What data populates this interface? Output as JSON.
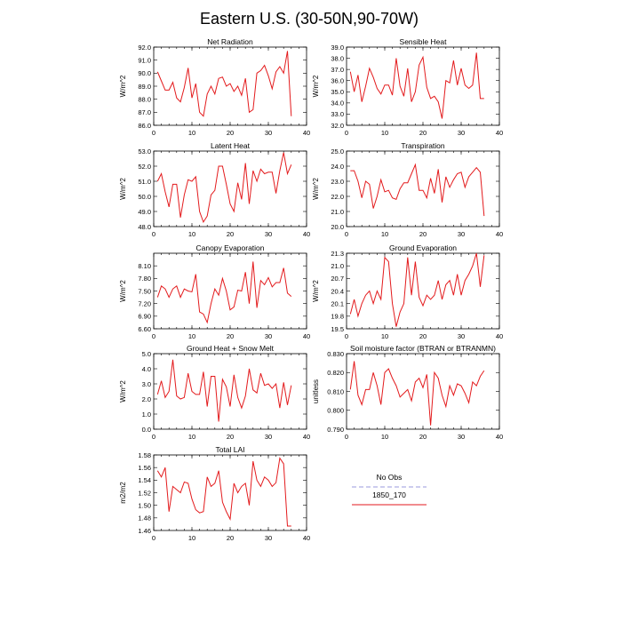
{
  "title": "Eastern U.S. (30-50N,90-70W)",
  "chart_data": [
    {
      "type": "line",
      "title": "Net Radiation",
      "ylabel": "W/m^2",
      "xlim": [
        0,
        40
      ],
      "ylim": [
        86.0,
        92.0
      ],
      "xticks": [
        "0",
        "10",
        "20",
        "30",
        "40"
      ],
      "yticks": [
        "86.0",
        "87.0",
        "88.0",
        "89.0",
        "90.0",
        "91.0",
        "92.0"
      ],
      "series": [
        {
          "name": "1850_170",
          "x": [
            1,
            2,
            3,
            4,
            5,
            6,
            7,
            8,
            9,
            10,
            11,
            12,
            13,
            14,
            15,
            16,
            17,
            18,
            19,
            20,
            21,
            22,
            23,
            24,
            25,
            26,
            27,
            28,
            29,
            30,
            31,
            32,
            33,
            34,
            35,
            36
          ],
          "values": [
            90.1,
            89.4,
            88.7,
            88.7,
            89.3,
            88.1,
            87.8,
            88.9,
            90.4,
            88.1,
            89.2,
            87.0,
            86.7,
            88.4,
            89.0,
            88.4,
            89.6,
            89.7,
            89.0,
            89.2,
            88.6,
            89.0,
            88.3,
            89.6,
            87.0,
            87.2,
            90.0,
            90.2,
            90.6,
            89.8,
            88.8,
            90.1,
            90.5,
            90.0,
            91.7,
            86.7
          ]
        }
      ]
    },
    {
      "type": "line",
      "title": "Sensible Heat",
      "ylabel": "W/m^2",
      "xlim": [
        0,
        40
      ],
      "ylim": [
        32.0,
        39.0
      ],
      "xticks": [
        "0",
        "10",
        "20",
        "30",
        "40"
      ],
      "yticks": [
        "32.0",
        "33.0",
        "34.0",
        "35.0",
        "36.0",
        "37.0",
        "38.0",
        "39.0"
      ],
      "series": [
        {
          "name": "1850_170",
          "x": [
            1,
            2,
            3,
            4,
            5,
            6,
            7,
            8,
            9,
            10,
            11,
            12,
            13,
            14,
            15,
            16,
            17,
            18,
            19,
            20,
            21,
            22,
            23,
            24,
            25,
            26,
            27,
            28,
            29,
            30,
            31,
            32,
            33,
            34,
            35,
            36
          ],
          "values": [
            36.8,
            35.0,
            36.5,
            34.1,
            35.5,
            37.1,
            36.3,
            35.3,
            34.8,
            35.6,
            35.6,
            34.7,
            38.0,
            35.5,
            34.6,
            37.1,
            34.1,
            35.0,
            37.4,
            38.1,
            35.4,
            34.4,
            34.6,
            34.1,
            32.6,
            36.0,
            35.8,
            37.8,
            35.6,
            37.1,
            35.6,
            35.3,
            35.6,
            38.5,
            34.4,
            34.4
          ]
        }
      ]
    },
    {
      "type": "line",
      "title": "Latent Heat",
      "ylabel": "W/m^2",
      "xlim": [
        0,
        40
      ],
      "ylim": [
        48.0,
        53.0
      ],
      "xticks": [
        "0",
        "10",
        "20",
        "30",
        "40"
      ],
      "yticks": [
        "48.0",
        "49.0",
        "50.0",
        "51.0",
        "52.0",
        "53.0"
      ],
      "series": [
        {
          "name": "1850_170",
          "x": [
            1,
            2,
            3,
            4,
            5,
            6,
            7,
            8,
            9,
            10,
            11,
            12,
            13,
            14,
            15,
            16,
            17,
            18,
            19,
            20,
            21,
            22,
            23,
            24,
            25,
            26,
            27,
            28,
            29,
            30,
            31,
            32,
            33,
            34,
            35,
            36
          ],
          "values": [
            51.0,
            51.5,
            50.3,
            49.3,
            50.8,
            50.8,
            48.6,
            50.1,
            51.1,
            51.0,
            51.3,
            49.0,
            48.3,
            48.7,
            50.1,
            50.4,
            52.0,
            52.0,
            50.8,
            49.5,
            49.0,
            50.9,
            49.8,
            52.2,
            49.5,
            51.7,
            51.0,
            51.8,
            51.5,
            51.6,
            51.6,
            50.2,
            51.7,
            52.9,
            51.5,
            52.1
          ]
        }
      ]
    },
    {
      "type": "line",
      "title": "Transpiration",
      "ylabel": "W/m^2",
      "xlim": [
        0,
        40
      ],
      "ylim": [
        20.0,
        25.0
      ],
      "xticks": [
        "0",
        "10",
        "20",
        "30",
        "40"
      ],
      "yticks": [
        "20.0",
        "21.0",
        "22.0",
        "23.0",
        "24.0",
        "25.0"
      ],
      "series": [
        {
          "name": "1850_170",
          "x": [
            1,
            2,
            3,
            4,
            5,
            6,
            7,
            8,
            9,
            10,
            11,
            12,
            13,
            14,
            15,
            16,
            17,
            18,
            19,
            20,
            21,
            22,
            23,
            24,
            25,
            26,
            27,
            28,
            29,
            30,
            31,
            32,
            33,
            34,
            35,
            36
          ],
          "values": [
            23.7,
            23.7,
            23.0,
            21.9,
            23.0,
            22.8,
            21.2,
            22.0,
            23.1,
            22.3,
            22.4,
            21.9,
            21.8,
            22.5,
            22.9,
            22.9,
            23.5,
            24.1,
            22.4,
            22.4,
            21.9,
            23.2,
            22.2,
            23.8,
            21.6,
            23.3,
            22.6,
            23.1,
            23.5,
            23.6,
            22.6,
            23.3,
            23.6,
            23.9,
            23.6,
            20.7
          ]
        }
      ]
    },
    {
      "type": "line",
      "title": "Canopy Evaporation",
      "ylabel": "W/m^2",
      "xlim": [
        0,
        40
      ],
      "ylim": [
        6.6,
        8.4
      ],
      "xticks": [
        "0",
        "10",
        "20",
        "30",
        "40"
      ],
      "yticks": [
        "6.60",
        "6.90",
        "7.20",
        "7.50",
        "7.80",
        "8.10"
      ],
      "series": [
        {
          "name": "1850_170",
          "x": [
            1,
            2,
            3,
            4,
            5,
            6,
            7,
            8,
            9,
            10,
            11,
            12,
            13,
            14,
            15,
            16,
            17,
            18,
            19,
            20,
            21,
            22,
            23,
            24,
            25,
            26,
            27,
            28,
            29,
            30,
            31,
            32,
            33,
            34,
            35,
            36
          ],
          "values": [
            7.35,
            7.62,
            7.55,
            7.35,
            7.55,
            7.62,
            7.35,
            7.55,
            7.5,
            7.48,
            7.9,
            7.0,
            6.95,
            6.75,
            7.2,
            7.55,
            7.4,
            7.8,
            7.5,
            7.05,
            7.12,
            7.52,
            7.5,
            7.95,
            7.2,
            8.2,
            7.1,
            7.75,
            7.65,
            7.82,
            7.6,
            7.7,
            7.7,
            8.05,
            7.45,
            7.37
          ]
        }
      ]
    },
    {
      "type": "line",
      "title": "Ground Evaporation",
      "ylabel": "W/m^2",
      "xlim": [
        0,
        40
      ],
      "ylim": [
        19.5,
        21.3
      ],
      "xticks": [
        "0",
        "10",
        "20",
        "30",
        "40"
      ],
      "yticks": [
        "19.5",
        "19.8",
        "20.1",
        "20.4",
        "20.7",
        "21.0",
        "21.3"
      ],
      "series": [
        {
          "name": "1850_170",
          "x": [
            1,
            2,
            3,
            4,
            5,
            6,
            7,
            8,
            9,
            10,
            11,
            12,
            13,
            14,
            15,
            16,
            17,
            18,
            19,
            20,
            21,
            22,
            23,
            24,
            25,
            26,
            27,
            28,
            29,
            30,
            31,
            32,
            33,
            34,
            35,
            36
          ],
          "values": [
            19.85,
            20.2,
            19.8,
            20.1,
            20.3,
            20.4,
            20.1,
            20.4,
            20.2,
            21.2,
            21.1,
            20.1,
            19.55,
            19.9,
            20.1,
            21.2,
            20.3,
            21.1,
            20.25,
            20.05,
            20.3,
            20.2,
            20.3,
            20.65,
            20.2,
            20.55,
            20.65,
            20.3,
            20.8,
            20.3,
            20.65,
            20.8,
            21.0,
            21.3,
            20.5,
            21.25
          ]
        }
      ]
    },
    {
      "type": "line",
      "title": "Ground Heat + Snow Melt",
      "ylabel": "W/m^2",
      "xlim": [
        0,
        40
      ],
      "ylim": [
        0.0,
        5.0
      ],
      "xticks": [
        "0",
        "10",
        "20",
        "30",
        "40"
      ],
      "yticks": [
        "0.0",
        "1.0",
        "2.0",
        "3.0",
        "4.0",
        "5.0"
      ],
      "series": [
        {
          "name": "1850_170",
          "x": [
            1,
            2,
            3,
            4,
            5,
            6,
            7,
            8,
            9,
            10,
            11,
            12,
            13,
            14,
            15,
            16,
            17,
            18,
            19,
            20,
            21,
            22,
            23,
            24,
            25,
            26,
            27,
            28,
            29,
            30,
            31,
            32,
            33,
            34,
            35,
            36
          ],
          "values": [
            2.3,
            3.2,
            2.1,
            2.5,
            4.6,
            2.2,
            2.0,
            2.1,
            3.7,
            2.5,
            2.3,
            2.3,
            3.8,
            1.5,
            3.5,
            3.5,
            0.5,
            3.3,
            2.8,
            1.5,
            3.6,
            2.1,
            1.4,
            2.2,
            4.0,
            2.6,
            2.4,
            3.7,
            2.9,
            3.0,
            2.7,
            3.0,
            1.4,
            3.1,
            1.6,
            2.9
          ]
        }
      ]
    },
    {
      "type": "line",
      "title": "Soil moisture factor (BTRAN or BTRANMN)",
      "ylabel": "unitless",
      "xlim": [
        0,
        40
      ],
      "ylim": [
        0.79,
        0.83
      ],
      "xticks": [
        "0",
        "10",
        "20",
        "30",
        "40"
      ],
      "yticks": [
        "0.790",
        "0.800",
        "0.810",
        "0.820",
        "0.830"
      ],
      "series": [
        {
          "name": "1850_170",
          "x": [
            1,
            2,
            3,
            4,
            5,
            6,
            7,
            8,
            9,
            10,
            11,
            12,
            13,
            14,
            15,
            16,
            17,
            18,
            19,
            20,
            21,
            22,
            23,
            24,
            25,
            26,
            27,
            28,
            29,
            30,
            31,
            32,
            33,
            34,
            35,
            36
          ],
          "values": [
            0.811,
            0.826,
            0.808,
            0.803,
            0.811,
            0.811,
            0.82,
            0.813,
            0.803,
            0.82,
            0.822,
            0.817,
            0.813,
            0.807,
            0.809,
            0.811,
            0.805,
            0.815,
            0.817,
            0.812,
            0.819,
            0.792,
            0.82,
            0.817,
            0.808,
            0.802,
            0.813,
            0.808,
            0.814,
            0.813,
            0.809,
            0.804,
            0.815,
            0.813,
            0.818,
            0.821
          ]
        }
      ]
    },
    {
      "type": "line",
      "title": "Total LAI",
      "ylabel": "m2/m2",
      "xlim": [
        0,
        40
      ],
      "ylim": [
        1.46,
        1.58
      ],
      "xticks": [
        "0",
        "10",
        "20",
        "30",
        "40"
      ],
      "yticks": [
        "1.46",
        "1.48",
        "1.50",
        "1.52",
        "1.54",
        "1.56",
        "1.58"
      ],
      "series": [
        {
          "name": "1850_170",
          "x": [
            1,
            2,
            3,
            4,
            5,
            6,
            7,
            8,
            9,
            10,
            11,
            12,
            13,
            14,
            15,
            16,
            17,
            18,
            19,
            20,
            21,
            22,
            23,
            24,
            25,
            26,
            27,
            28,
            29,
            30,
            31,
            32,
            33,
            34,
            35,
            36
          ],
          "values": [
            1.555,
            1.545,
            1.56,
            1.49,
            1.53,
            1.525,
            1.52,
            1.537,
            1.535,
            1.51,
            1.493,
            1.488,
            1.49,
            1.545,
            1.53,
            1.535,
            1.555,
            1.505,
            1.49,
            1.478,
            1.535,
            1.52,
            1.53,
            1.535,
            1.5,
            1.57,
            1.54,
            1.53,
            1.545,
            1.54,
            1.53,
            1.536,
            1.575,
            1.566,
            1.467,
            1.467
          ]
        }
      ]
    }
  ],
  "legend": {
    "items": [
      {
        "name": "No Obs",
        "color": "#9999dd",
        "dash": true
      },
      {
        "name": "1850_170",
        "color": "#e31a1c",
        "dash": false
      }
    ]
  }
}
